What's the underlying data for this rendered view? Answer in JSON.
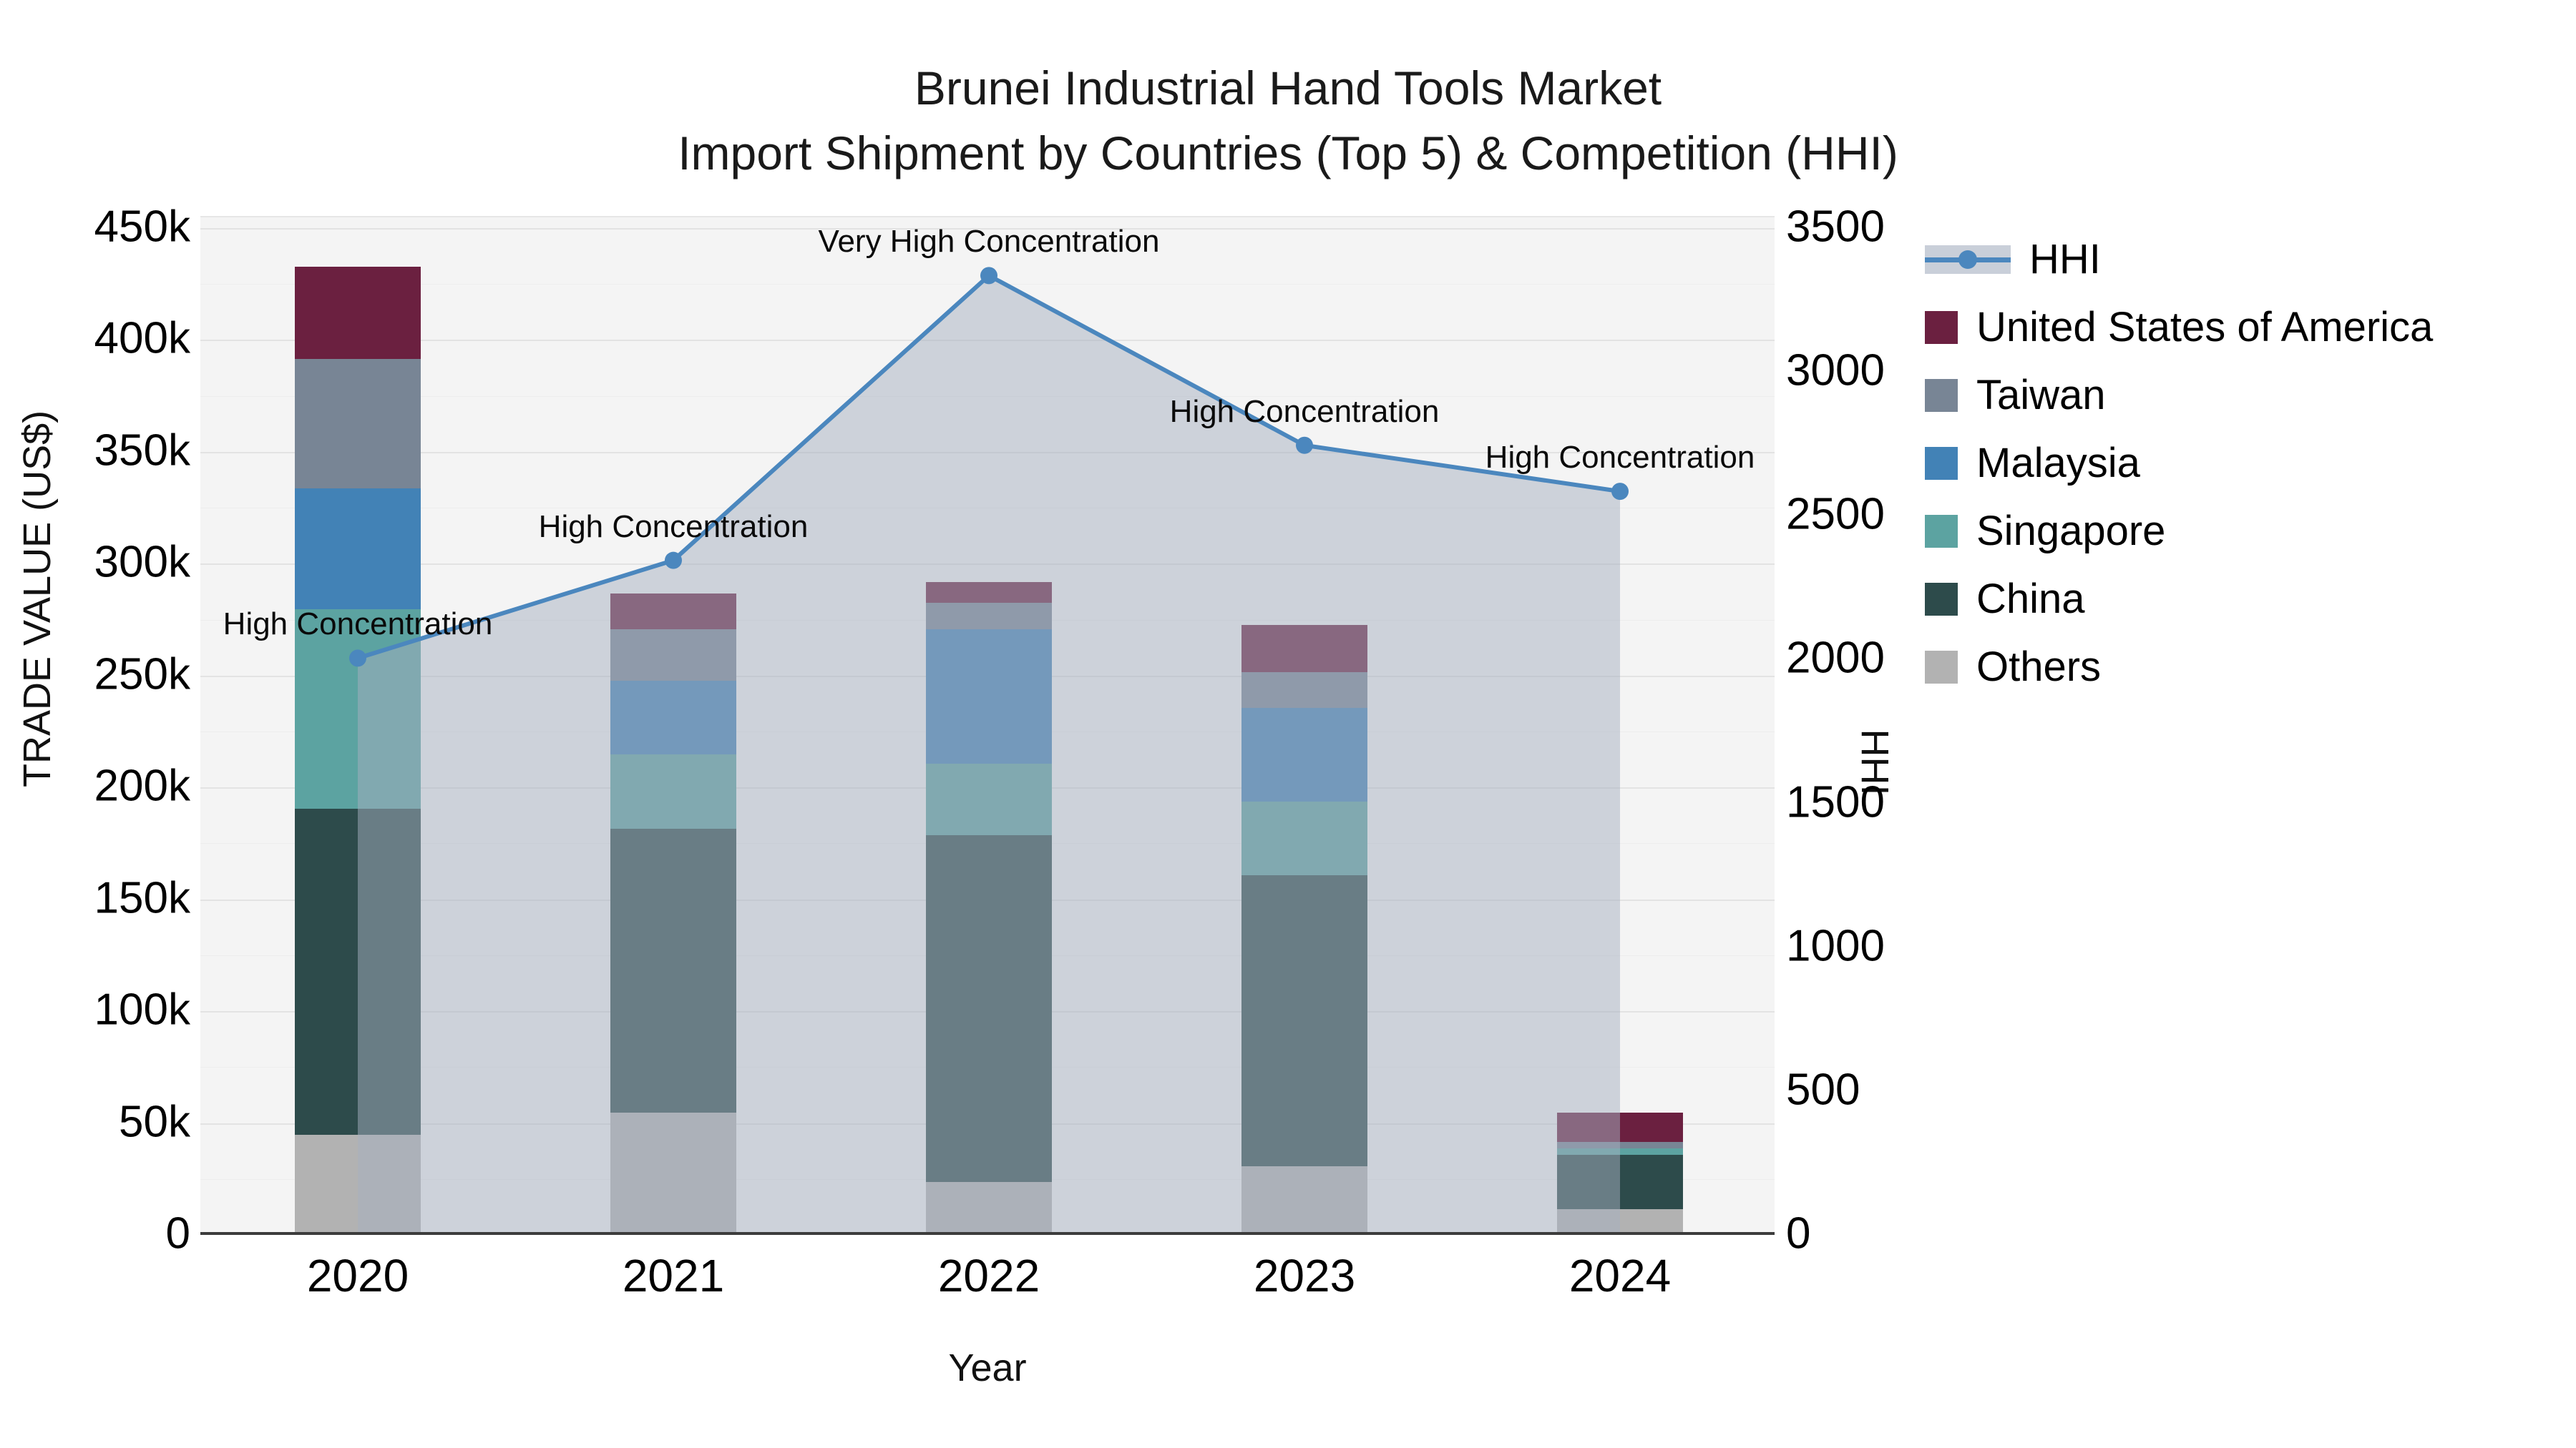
{
  "title": {
    "line1": "Brunei Industrial Hand Tools Market",
    "line2": "Import Shipment by Countries (Top 5) & Competition (HHI)"
  },
  "axes": {
    "y_left": {
      "title": "TRADE VALUE (US$)",
      "tick_labels": [
        "0",
        "50k",
        "100k",
        "150k",
        "200k",
        "250k",
        "300k",
        "350k",
        "400k",
        "450k"
      ]
    },
    "y_right": {
      "title": "HHI",
      "tick_labels": [
        "0",
        "500",
        "1000",
        "1500",
        "2000",
        "2500",
        "3000",
        "3500"
      ]
    },
    "x": {
      "title": "Year",
      "tick_labels": [
        "2020",
        "2021",
        "2022",
        "2023",
        "2024"
      ]
    }
  },
  "legend": {
    "items": [
      "HHI",
      "United States of America",
      "Taiwan",
      "Malaysia",
      "Singapore",
      "China",
      "Others"
    ]
  },
  "chart_data": {
    "type": "bar",
    "subtype": "stacked-bars-with-line",
    "title": "Brunei Industrial Hand Tools Market — Import Shipment by Countries (Top 5) & Competition (HHI)",
    "xlabel": "Year",
    "ylabel": "TRADE VALUE (US$)",
    "y2label": "HHI",
    "ylim": [
      0,
      450000
    ],
    "y2lim": [
      0,
      3500
    ],
    "grid": true,
    "legend_position": "right",
    "categories": [
      "2020",
      "2021",
      "2022",
      "2023",
      "2024"
    ],
    "stack_order_bottom_to_top": [
      "Others",
      "China",
      "Singapore",
      "Malaysia",
      "Taiwan",
      "United States of America"
    ],
    "series": [
      {
        "name": "United States of America",
        "color": "#6b2040",
        "values": [
          41000,
          16000,
          9000,
          21000,
          13000
        ]
      },
      {
        "name": "Taiwan",
        "color": "#788595",
        "values": [
          58000,
          23000,
          12000,
          16000,
          3000
        ]
      },
      {
        "name": "Malaysia",
        "color": "#4282b6",
        "values": [
          54000,
          33000,
          60000,
          42000,
          0
        ]
      },
      {
        "name": "Singapore",
        "color": "#5ca3a1",
        "values": [
          89000,
          33000,
          32000,
          33000,
          3000
        ]
      },
      {
        "name": "China",
        "color": "#2d4b4b",
        "values": [
          146000,
          127000,
          155000,
          130000,
          24000
        ]
      },
      {
        "name": "Others",
        "color": "#b2b2b2",
        "values": [
          44000,
          54000,
          23000,
          30000,
          11000
        ]
      }
    ],
    "line_series": {
      "name": "HHI",
      "axis": "y2",
      "color": "#4b87be",
      "area_fill_color": "rgba(166,176,192,0.5)",
      "values": [
        2000,
        2340,
        3330,
        2740,
        2580
      ],
      "annotations": [
        "High Concentration",
        "High Concentration",
        "Very High Concentration",
        "High Concentration",
        "High Concentration"
      ]
    }
  }
}
